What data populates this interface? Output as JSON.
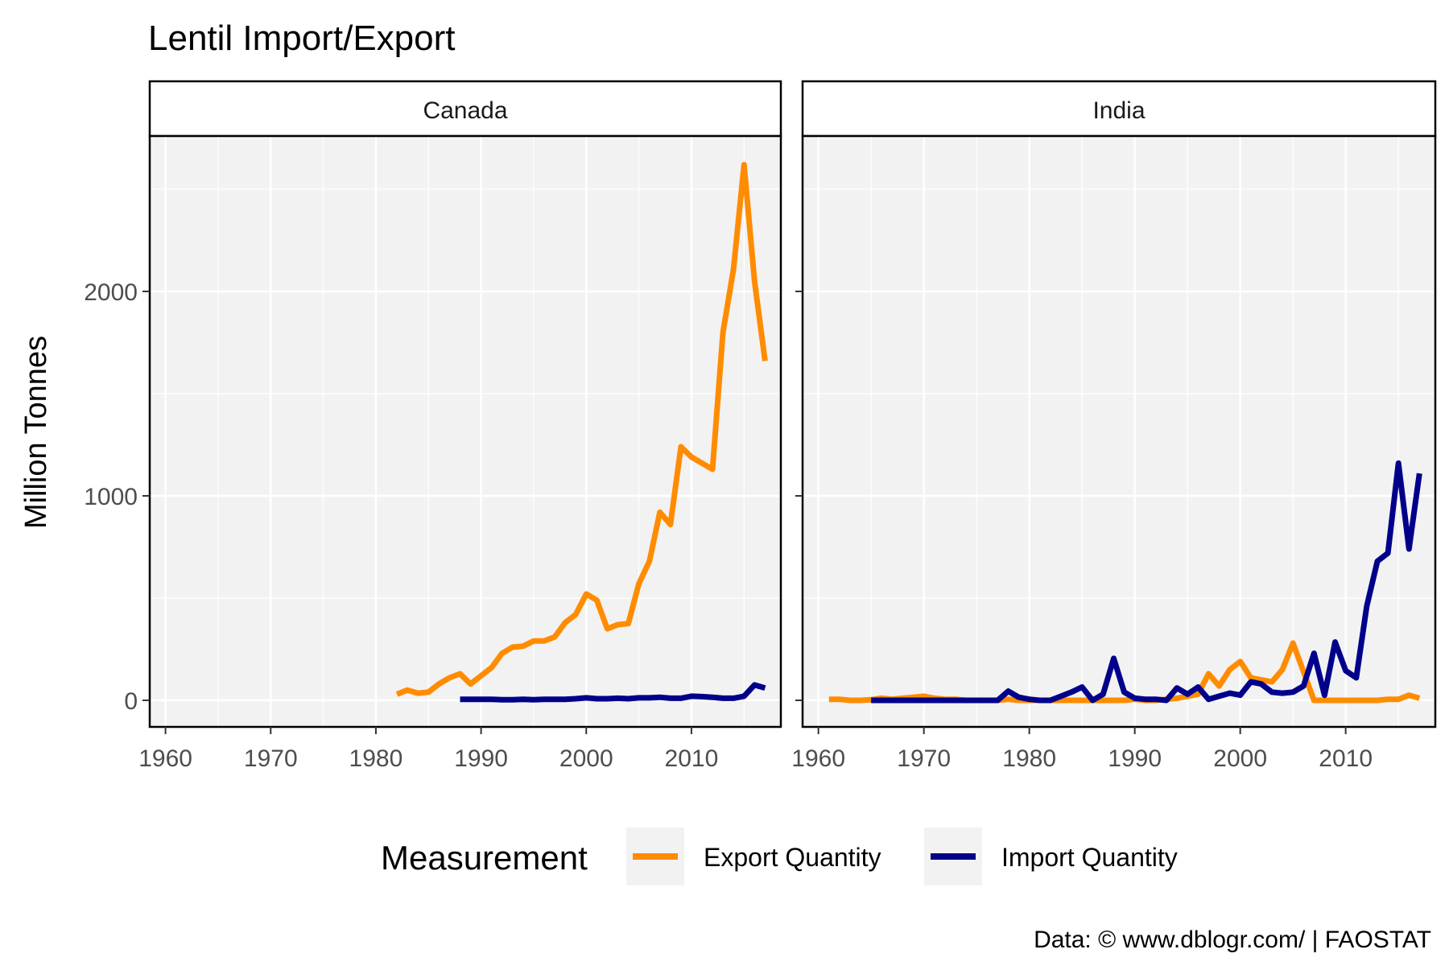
{
  "chart_data": {
    "type": "line",
    "title": "Lentil Import/Export",
    "ylabel": "Million Tonnes",
    "xlabel": "",
    "xlim": [
      1958.5,
      2018.5
    ],
    "ylim": [
      -130,
      2760
    ],
    "x_ticks": [
      1960,
      1970,
      1980,
      1990,
      2000,
      2010
    ],
    "x_tick_labels": [
      "1960",
      "1970",
      "1980",
      "1990",
      "2000",
      "2010"
    ],
    "y_ticks": [
      0,
      1000,
      2000
    ],
    "y_tick_labels": [
      "0",
      "1000",
      "2000"
    ],
    "grid": true,
    "legend": {
      "title": "Measurement",
      "position": "bottom",
      "entries": [
        {
          "label": "Export Quantity",
          "color": "#ff8c00"
        },
        {
          "label": "Import Quantity",
          "color": "#00008b"
        }
      ]
    },
    "caption": "Data: © www.dblogr.com/  |  FAOSTAT",
    "colors": {
      "export": "#ff8c00",
      "import": "#00008b",
      "panel_bg": "#f2f2f2",
      "grid": "#ffffff",
      "border": "#000000"
    },
    "facets": [
      {
        "name": "Canada",
        "series": [
          {
            "name": "Export Quantity",
            "color": "#ff8c00",
            "x": [
              1982,
              1983,
              1984,
              1985,
              1986,
              1987,
              1988,
              1989,
              1990,
              1991,
              1992,
              1993,
              1994,
              1995,
              1996,
              1997,
              1998,
              1999,
              2000,
              2001,
              2002,
              2003,
              2004,
              2005,
              2006,
              2007,
              2008,
              2009,
              2010,
              2011,
              2012,
              2013,
              2014,
              2015,
              2016,
              2017
            ],
            "y": [
              30,
              50,
              35,
              40,
              80,
              110,
              130,
              80,
              120,
              160,
              230,
              260,
              265,
              290,
              290,
              310,
              380,
              420,
              520,
              490,
              350,
              370,
              375,
              570,
              680,
              920,
              860,
              1240,
              1190,
              1160,
              1130,
              1800,
              2110,
              2620,
              2050,
              1660
            ]
          },
          {
            "name": "Import Quantity",
            "color": "#00008b",
            "x": [
              1988,
              1989,
              1990,
              1991,
              1992,
              1993,
              1994,
              1995,
              1996,
              1997,
              1998,
              1999,
              2000,
              2001,
              2002,
              2003,
              2004,
              2005,
              2006,
              2007,
              2008,
              2009,
              2010,
              2011,
              2012,
              2013,
              2014,
              2015,
              2016,
              2017
            ],
            "y": [
              5,
              5,
              5,
              5,
              3,
              3,
              5,
              3,
              5,
              5,
              5,
              8,
              12,
              8,
              8,
              10,
              8,
              12,
              12,
              15,
              10,
              10,
              20,
              18,
              15,
              10,
              10,
              20,
              75,
              60
            ]
          }
        ]
      },
      {
        "name": "India",
        "series": [
          {
            "name": "Export Quantity",
            "color": "#ff8c00",
            "x": [
              1961,
              1962,
              1963,
              1964,
              1965,
              1966,
              1967,
              1968,
              1969,
              1970,
              1971,
              1972,
              1973,
              1974,
              1975,
              1976,
              1977,
              1978,
              1979,
              1980,
              1981,
              1982,
              1983,
              1984,
              1985,
              1986,
              1987,
              1988,
              1989,
              1990,
              1991,
              1992,
              1993,
              1994,
              1995,
              1996,
              1997,
              1998,
              1999,
              2000,
              2001,
              2002,
              2003,
              2004,
              2005,
              2006,
              2007,
              2008,
              2009,
              2010,
              2011,
              2012,
              2013,
              2014,
              2015,
              2016,
              2017
            ],
            "y": [
              5,
              5,
              0,
              0,
              3,
              10,
              5,
              10,
              15,
              20,
              10,
              5,
              5,
              0,
              0,
              0,
              0,
              5,
              0,
              0,
              0,
              0,
              0,
              0,
              0,
              0,
              0,
              0,
              0,
              5,
              0,
              0,
              5,
              10,
              20,
              30,
              130,
              70,
              150,
              190,
              110,
              100,
              90,
              150,
              280,
              140,
              0,
              0,
              0,
              0,
              0,
              0,
              0,
              5,
              5,
              25,
              10
            ]
          },
          {
            "name": "Import Quantity",
            "color": "#00008b",
            "x": [
              1965,
              1966,
              1967,
              1968,
              1969,
              1970,
              1971,
              1972,
              1973,
              1974,
              1975,
              1976,
              1977,
              1978,
              1979,
              1980,
              1981,
              1982,
              1983,
              1984,
              1985,
              1986,
              1987,
              1988,
              1989,
              1990,
              1991,
              1992,
              1993,
              1994,
              1995,
              1996,
              1997,
              1998,
              1999,
              2000,
              2001,
              2002,
              2003,
              2004,
              2005,
              2006,
              2007,
              2008,
              2009,
              2010,
              2011,
              2012,
              2013,
              2014,
              2015,
              2016,
              2017
            ],
            "y": [
              0,
              0,
              0,
              0,
              0,
              0,
              0,
              0,
              0,
              0,
              0,
              0,
              0,
              45,
              15,
              5,
              0,
              0,
              20,
              40,
              65,
              0,
              30,
              205,
              40,
              10,
              5,
              5,
              0,
              60,
              30,
              65,
              5,
              20,
              35,
              25,
              90,
              80,
              40,
              35,
              40,
              70,
              230,
              25,
              285,
              145,
              110,
              460,
              680,
              720,
              1160,
              740,
              1110
            ]
          }
        ]
      }
    ]
  }
}
